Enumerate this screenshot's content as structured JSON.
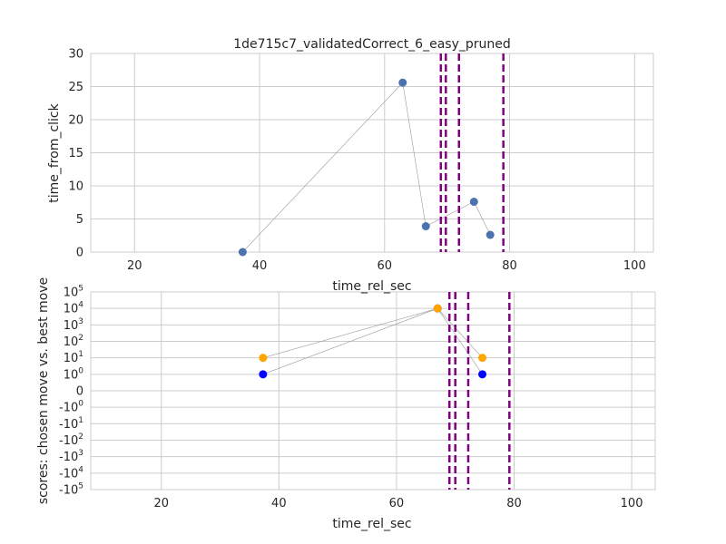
{
  "chart_data": [
    {
      "type": "scatter",
      "title": "1de715c7_validatedCorrect_6_easy_pruned",
      "xlabel": "time_rel_sec",
      "ylabel": "time_from_click",
      "xlim": [
        13,
        103
      ],
      "ylim": [
        0,
        30
      ],
      "xticks": [
        20,
        40,
        60,
        80,
        100
      ],
      "yticks": [
        0,
        5,
        10,
        15,
        20,
        25,
        30
      ],
      "grid": true,
      "series": [
        {
          "color": "#4c72b0",
          "connected": true,
          "x": [
            37.3,
            62.9,
            66.6,
            74.3,
            76.9
          ],
          "y": [
            0.0,
            25.6,
            3.9,
            7.6,
            2.6
          ]
        }
      ],
      "vlines": [
        69.0,
        69.8,
        71.9,
        79.0
      ],
      "vline_color": "#800080"
    },
    {
      "type": "scatter",
      "xlabel": "time_rel_sec",
      "ylabel": "scores: chosen move vs. best move",
      "xlim": [
        8,
        104
      ],
      "yscale": "symlog",
      "ylim": [
        -100000,
        100000
      ],
      "xticks": [
        20,
        40,
        60,
        80,
        100
      ],
      "yticks": [
        {
          "value": 100000,
          "base": "10",
          "exp": "5"
        },
        {
          "value": 10000,
          "base": "10",
          "exp": "4"
        },
        {
          "value": 1000,
          "base": "10",
          "exp": "3"
        },
        {
          "value": 100,
          "base": "10",
          "exp": "2"
        },
        {
          "value": 10,
          "base": "10",
          "exp": "1"
        },
        {
          "value": 1,
          "base": "10",
          "exp": "0"
        },
        {
          "value": 0,
          "base": "0",
          "exp": ""
        },
        {
          "value": -1,
          "base": "-10",
          "exp": "0"
        },
        {
          "value": -10,
          "base": "-10",
          "exp": "1"
        },
        {
          "value": -100,
          "base": "-10",
          "exp": "2"
        },
        {
          "value": -1000,
          "base": "-10",
          "exp": "3"
        },
        {
          "value": -10000,
          "base": "-10",
          "exp": "4"
        },
        {
          "value": -100000,
          "base": "-10",
          "exp": "5"
        }
      ],
      "grid": true,
      "series": [
        {
          "color": "#0000ff",
          "connected": true,
          "x": [
            37.3,
            67.0,
            74.6
          ],
          "y": [
            1,
            10000,
            1
          ]
        },
        {
          "color": "#ffa500",
          "connected": true,
          "x": [
            37.3,
            67.0,
            74.6
          ],
          "y": [
            10,
            10000,
            10
          ]
        }
      ],
      "vlines": [
        69.0,
        70.0,
        72.2,
        79.2
      ],
      "vline_color": "#800080"
    }
  ]
}
